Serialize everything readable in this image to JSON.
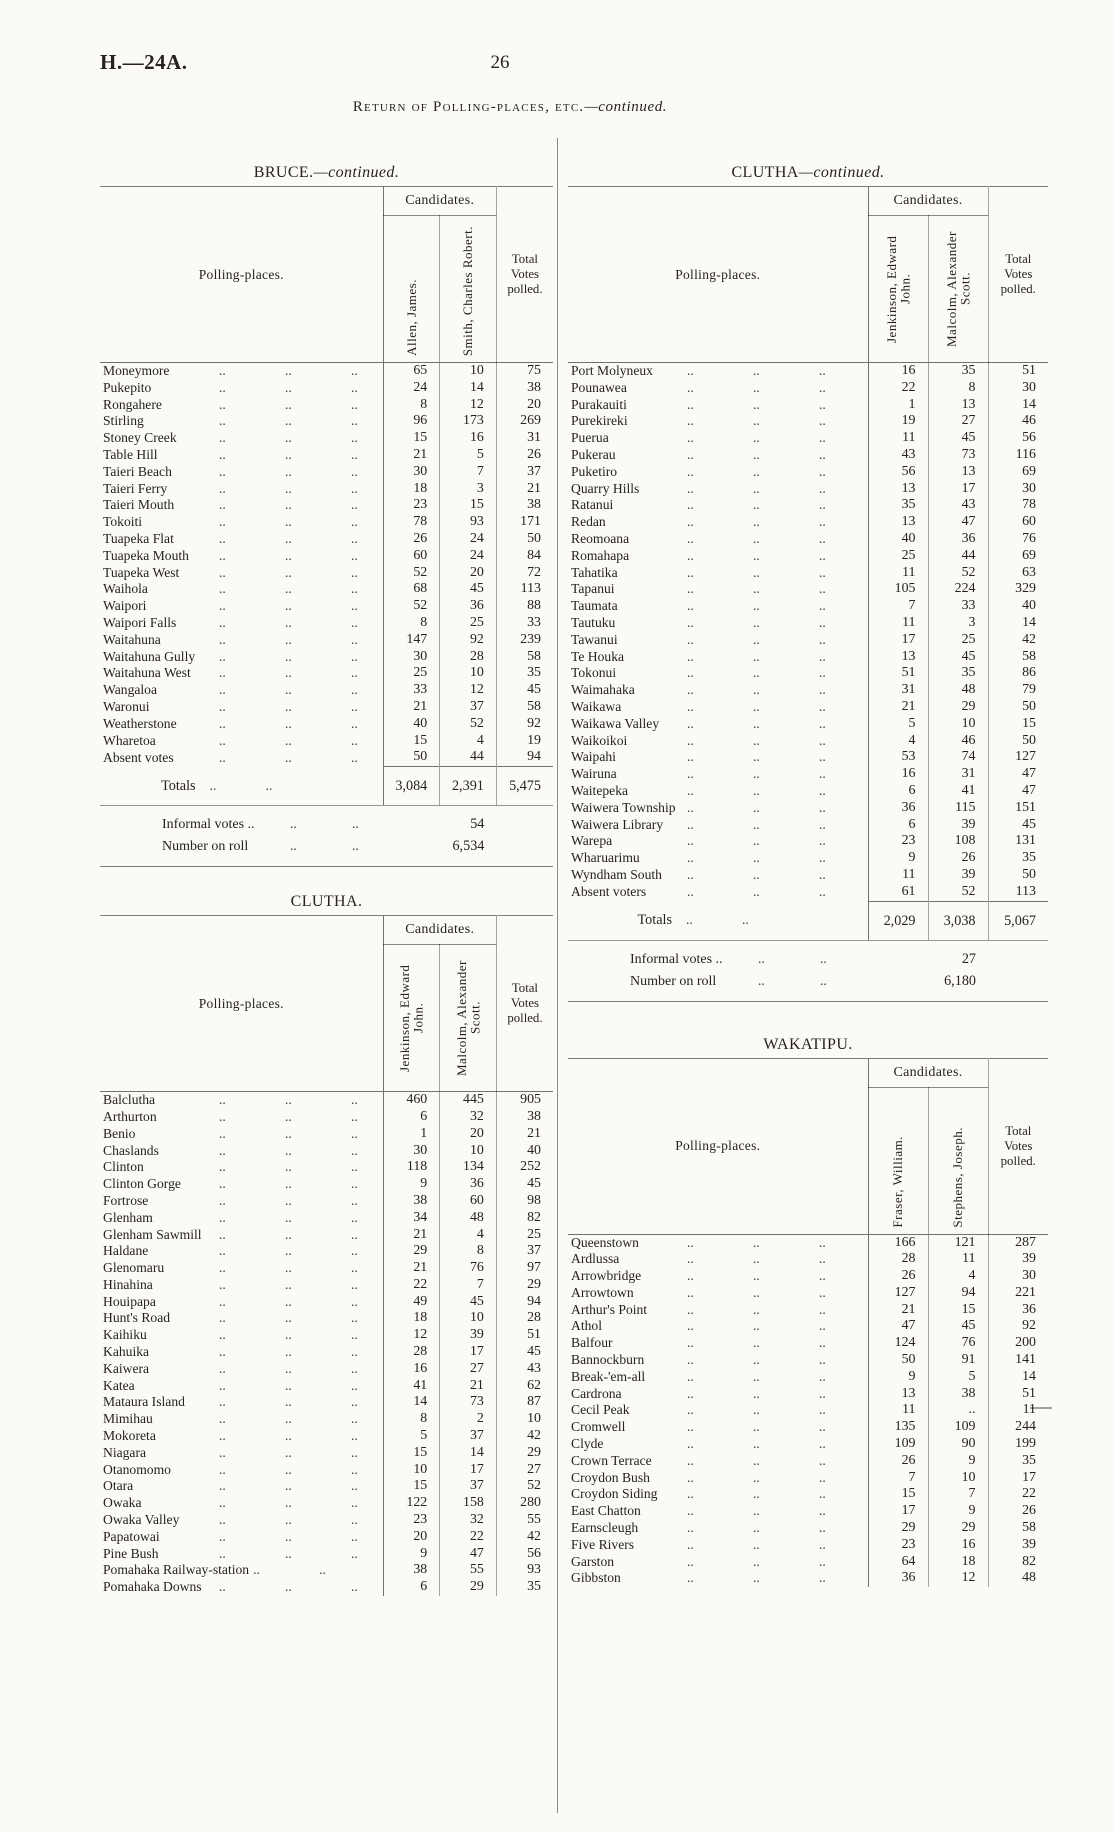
{
  "page": {
    "doc_ref": "H.—24A.",
    "page_number": "26",
    "heading_smallcaps": "Return of Polling-places, etc.",
    "heading_continued": "—continued."
  },
  "labels": {
    "candidates": "Candidates.",
    "polling_places": "Polling-places.",
    "total_votes_polled": "Total Votes polled.",
    "totals": "Totals",
    "informal_votes": "Informal votes ..",
    "number_on_roll": "Number on roll",
    "dots": ".."
  },
  "tables": [
    {
      "id": "bruce-continued",
      "title": {
        "name": "BRUCE.",
        "cont": "—continued."
      },
      "candidates": [
        "Allen, James.",
        "Smith, Charles Robert."
      ],
      "rows": [
        [
          "Moneymore",
          65,
          10,
          75
        ],
        [
          "Pukepito",
          24,
          14,
          38
        ],
        [
          "Rongahere",
          8,
          12,
          20
        ],
        [
          "Stirling",
          96,
          173,
          269
        ],
        [
          "Stoney Creek",
          15,
          16,
          31
        ],
        [
          "Table Hill",
          21,
          5,
          26
        ],
        [
          "Taieri Beach",
          30,
          7,
          37
        ],
        [
          "Taieri Ferry",
          18,
          3,
          21
        ],
        [
          "Taieri Mouth",
          23,
          15,
          38
        ],
        [
          "Tokoiti",
          78,
          93,
          171
        ],
        [
          "Tuapeka Flat",
          26,
          24,
          50
        ],
        [
          "Tuapeka Mouth",
          60,
          24,
          84
        ],
        [
          "Tuapeka West",
          52,
          20,
          72
        ],
        [
          "Waihola",
          68,
          45,
          113
        ],
        [
          "Waipori",
          52,
          36,
          88
        ],
        [
          "Waipori Falls",
          8,
          25,
          33
        ],
        [
          "Waitahuna",
          147,
          92,
          239
        ],
        [
          "Waitahuna Gully",
          30,
          28,
          58
        ],
        [
          "Waitahuna West",
          25,
          10,
          35
        ],
        [
          "Wangaloa",
          33,
          12,
          45
        ],
        [
          "Waronui",
          21,
          37,
          58
        ],
        [
          "Weatherstone",
          40,
          52,
          92
        ],
        [
          "Wharetoa",
          15,
          4,
          19
        ],
        [
          "Absent votes",
          50,
          44,
          94
        ]
      ],
      "totals": [
        "3,084",
        "2,391",
        "5,475"
      ],
      "informal_votes": "54",
      "number_on_roll": "6,534"
    },
    {
      "id": "clutha",
      "title": {
        "name": "CLUTHA.",
        "cont": ""
      },
      "candidates": [
        "Jenkinson, Edward John.",
        "Malcolm, Alexander Scott."
      ],
      "rows": [
        [
          "Balclutha",
          460,
          445,
          905
        ],
        [
          "Arthurton",
          6,
          32,
          38
        ],
        [
          "Benio",
          1,
          20,
          21
        ],
        [
          "Chaslands",
          30,
          10,
          40
        ],
        [
          "Clinton",
          118,
          134,
          252
        ],
        [
          "Clinton Gorge",
          9,
          36,
          45
        ],
        [
          "Fortrose",
          38,
          60,
          98
        ],
        [
          "Glenham",
          34,
          48,
          82
        ],
        [
          "Glenham Sawmill",
          21,
          4,
          25
        ],
        [
          "Haldane",
          29,
          8,
          37
        ],
        [
          "Glenomaru",
          21,
          76,
          97
        ],
        [
          "Hinahina",
          22,
          7,
          29
        ],
        [
          "Houipapa",
          49,
          45,
          94
        ],
        [
          "Hunt's Road",
          18,
          10,
          28
        ],
        [
          "Kaihiku",
          12,
          39,
          51
        ],
        [
          "Kahuika",
          28,
          17,
          45
        ],
        [
          "Kaiwera",
          16,
          27,
          43
        ],
        [
          "Katea",
          41,
          21,
          62
        ],
        [
          "Mataura Island",
          14,
          73,
          87
        ],
        [
          "Mimihau",
          8,
          2,
          10
        ],
        [
          "Mokoreta",
          5,
          37,
          42
        ],
        [
          "Niagara",
          15,
          14,
          29
        ],
        [
          "Otanomomo",
          10,
          17,
          27
        ],
        [
          "Otara",
          15,
          37,
          52
        ],
        [
          "Owaka",
          122,
          158,
          280
        ],
        [
          "Owaka Valley",
          23,
          32,
          55
        ],
        [
          "Papatowai",
          20,
          22,
          42
        ],
        [
          "Pine Bush",
          9,
          47,
          56
        ],
        [
          "Pomahaka Railway-station",
          38,
          55,
          93
        ],
        [
          "Pomahaka Downs",
          6,
          29,
          35
        ]
      ]
    },
    {
      "id": "clutha-continued",
      "title": {
        "name": "CLUTHA",
        "cont": "—continued."
      },
      "candidates": [
        "Jenkinson, Edward John.",
        "Malcolm, Alexander Scott."
      ],
      "rows": [
        [
          "Port Molyneux",
          16,
          35,
          51
        ],
        [
          "Pounawea",
          22,
          8,
          30
        ],
        [
          "Purakauiti",
          1,
          13,
          14
        ],
        [
          "Purekireki",
          19,
          27,
          46
        ],
        [
          "Puerua",
          11,
          45,
          56
        ],
        [
          "Pukerau",
          43,
          73,
          116
        ],
        [
          "Puketiro",
          56,
          13,
          69
        ],
        [
          "Quarry Hills",
          13,
          17,
          30
        ],
        [
          "Ratanui",
          35,
          43,
          78
        ],
        [
          "Redan",
          13,
          47,
          60
        ],
        [
          "Reomoana",
          40,
          36,
          76
        ],
        [
          "Romahapa",
          25,
          44,
          69
        ],
        [
          "Tahatika",
          11,
          52,
          63
        ],
        [
          "Tapanui",
          105,
          224,
          329
        ],
        [
          "Taumata",
          7,
          33,
          40
        ],
        [
          "Tautuku",
          11,
          3,
          14
        ],
        [
          "Tawanui",
          17,
          25,
          42
        ],
        [
          "Te Houka",
          13,
          45,
          58
        ],
        [
          "Tokonui",
          51,
          35,
          86
        ],
        [
          "Waimahaka",
          31,
          48,
          79
        ],
        [
          "Waikawa",
          21,
          29,
          50
        ],
        [
          "Waikawa Valley",
          5,
          10,
          15
        ],
        [
          "Waikoikoi",
          4,
          46,
          50
        ],
        [
          "Waipahi",
          53,
          74,
          127
        ],
        [
          "Wairuna",
          16,
          31,
          47
        ],
        [
          "Waitepeka",
          6,
          41,
          47
        ],
        [
          "Waiwera Township",
          36,
          115,
          151
        ],
        [
          "Waiwera Library",
          6,
          39,
          45
        ],
        [
          "Warepa",
          23,
          108,
          131
        ],
        [
          "Wharuarimu",
          9,
          26,
          35
        ],
        [
          "Wyndham South",
          11,
          39,
          50
        ],
        [
          "Absent voters",
          61,
          52,
          113
        ]
      ],
      "totals": [
        "2,029",
        "3,038",
        "5,067"
      ],
      "informal_votes": "27",
      "number_on_roll": "6,180"
    },
    {
      "id": "wakatipu",
      "title": {
        "name": "WAKATIPU.",
        "cont": ""
      },
      "candidates": [
        "Fraser, William.",
        "Stephens, Joseph."
      ],
      "rows": [
        [
          "Queenstown",
          166,
          121,
          287
        ],
        [
          "Ardlussa",
          28,
          11,
          39
        ],
        [
          "Arrowbridge",
          26,
          4,
          30
        ],
        [
          "Arrowtown",
          127,
          94,
          221
        ],
        [
          "Arthur's Point",
          21,
          15,
          36
        ],
        [
          "Athol",
          47,
          45,
          92
        ],
        [
          "Balfour",
          124,
          76,
          200
        ],
        [
          "Bannockburn",
          50,
          91,
          141
        ],
        [
          "Break-'em-all",
          9,
          5,
          14
        ],
        [
          "Cardrona",
          13,
          38,
          51
        ],
        [
          "Cecil Peak",
          11,
          "..",
          11
        ],
        [
          "Cromwell",
          135,
          109,
          244
        ],
        [
          "Clyde",
          109,
          90,
          199
        ],
        [
          "Crown Terrace",
          26,
          9,
          35
        ],
        [
          "Croydon Bush",
          7,
          10,
          17
        ],
        [
          "Croydon Siding",
          15,
          7,
          22
        ],
        [
          "East Chatton",
          17,
          9,
          26
        ],
        [
          "Earnscleugh",
          29,
          29,
          58
        ],
        [
          "Five Rivers",
          23,
          16,
          39
        ],
        [
          "Garston",
          64,
          18,
          82
        ],
        [
          "Gibbston",
          36,
          12,
          48
        ]
      ]
    }
  ]
}
